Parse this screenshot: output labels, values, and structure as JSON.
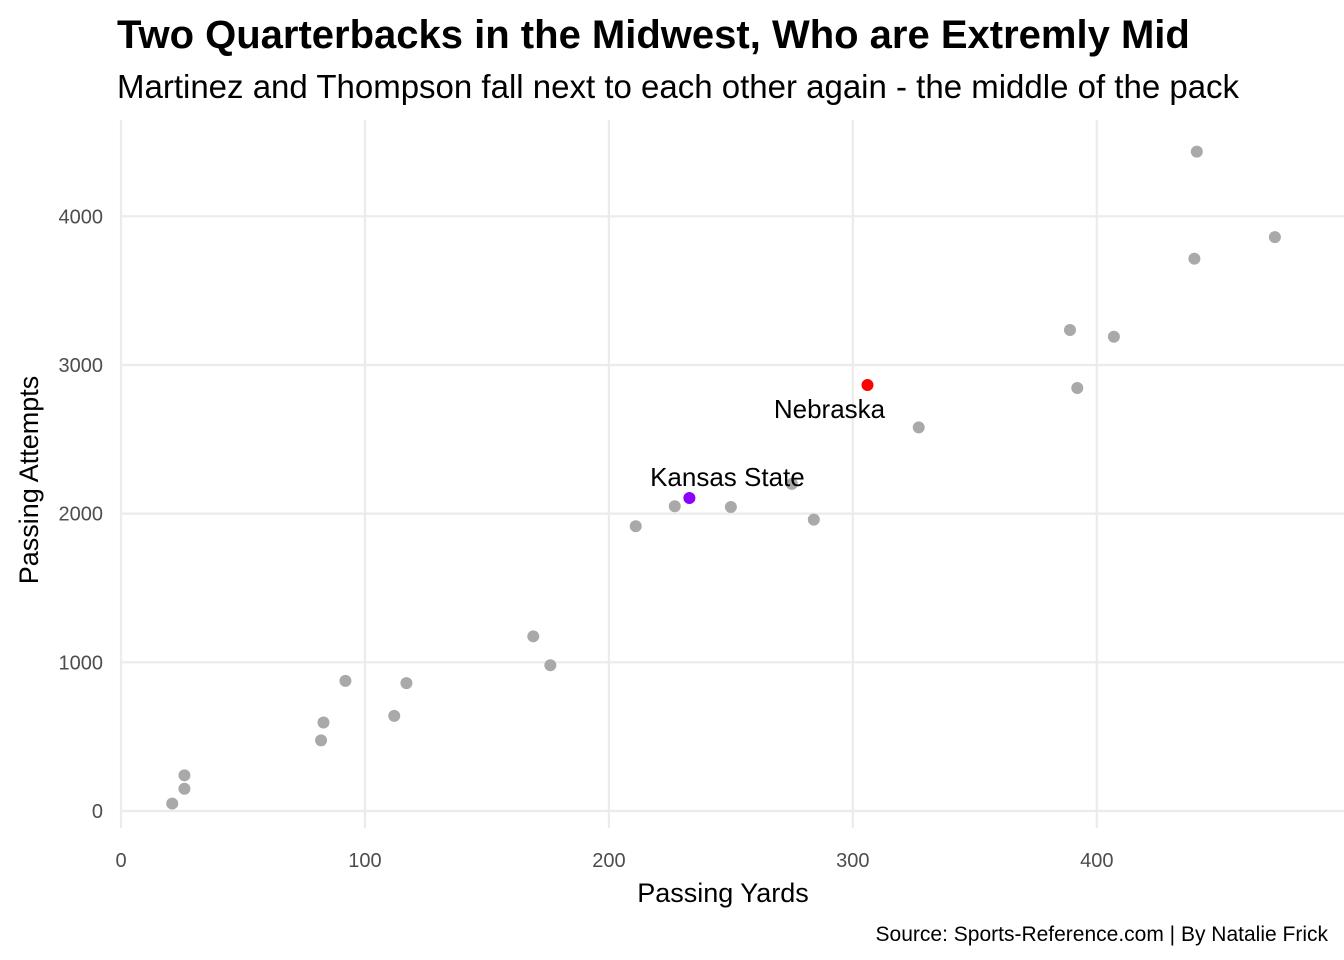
{
  "chart_data": {
    "type": "scatter",
    "title": "Two Quarterbacks in the Midwest, Who are Extremly Mid",
    "subtitle": "Martinez and Thompson fall next to each other again - the middle of the pack",
    "xlabel": "Passing Yards",
    "ylabel": "Passing Attempts",
    "caption": "Source: Sports-Reference.com | By Natalie Frick",
    "xlim": [
      0,
      490
    ],
    "ylim": [
      -100,
      4550
    ],
    "x_ticks": [
      0,
      100,
      200,
      300,
      400
    ],
    "y_ticks": [
      0,
      1000,
      2000,
      3000,
      4000
    ],
    "grid": true,
    "colors": {
      "default": "#a9a9a9",
      "Nebraska": "#ff0000",
      "Kansas State": "#8b00ff",
      "grid": "#ebebeb"
    },
    "points": [
      {
        "x": 21,
        "y": 50
      },
      {
        "x": 26,
        "y": 150
      },
      {
        "x": 26,
        "y": 240
      },
      {
        "x": 82,
        "y": 475
      },
      {
        "x": 83,
        "y": 595
      },
      {
        "x": 92,
        "y": 875
      },
      {
        "x": 112,
        "y": 640
      },
      {
        "x": 117,
        "y": 860
      },
      {
        "x": 169,
        "y": 1175
      },
      {
        "x": 176,
        "y": 980
      },
      {
        "x": 211,
        "y": 1915
      },
      {
        "x": 227,
        "y": 2050
      },
      {
        "x": 233,
        "y": 2105,
        "label": "Kansas State"
      },
      {
        "x": 250,
        "y": 2045
      },
      {
        "x": 275,
        "y": 2200
      },
      {
        "x": 284,
        "y": 1960
      },
      {
        "x": 306,
        "y": 2865,
        "label": "Nebraska"
      },
      {
        "x": 327,
        "y": 2580
      },
      {
        "x": 389,
        "y": 3235
      },
      {
        "x": 392,
        "y": 2845
      },
      {
        "x": 407,
        "y": 3190
      },
      {
        "x": 440,
        "y": 3715
      },
      {
        "x": 441,
        "y": 4435
      },
      {
        "x": 473,
        "y": 3860
      }
    ]
  }
}
